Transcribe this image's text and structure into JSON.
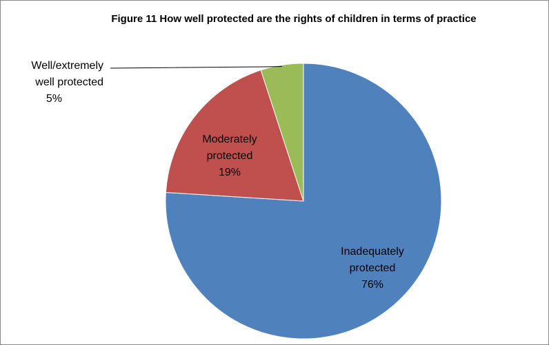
{
  "chart_data": {
    "type": "pie",
    "title": "Figure 11 How well protected are the rights of children in terms of practice",
    "slices": [
      {
        "label_lines": [
          "Inadequately",
          "protected"
        ],
        "value_label": "76%",
        "value": 76,
        "color": "#4F81BD"
      },
      {
        "label_lines": [
          "Moderately",
          "protected"
        ],
        "value_label": "19%",
        "value": 19,
        "color": "#C0504D"
      },
      {
        "label_lines": [
          "Well/extremely",
          "well protected"
        ],
        "value_label": "5%",
        "value": 5,
        "color": "#9BBB59"
      }
    ]
  }
}
